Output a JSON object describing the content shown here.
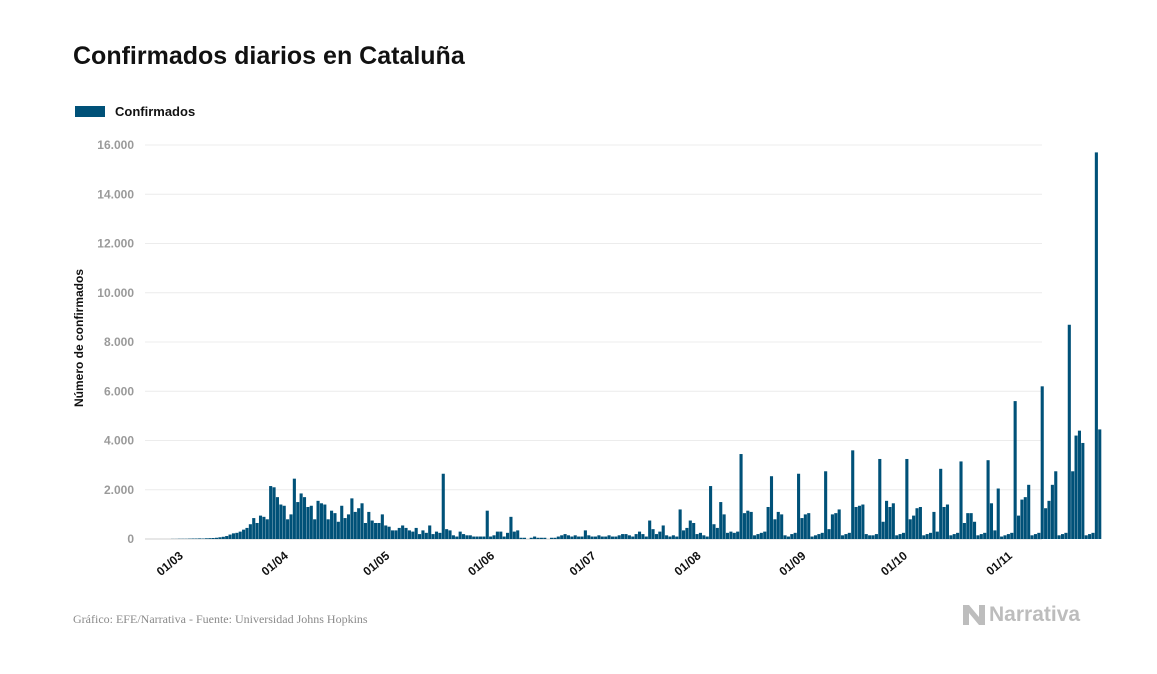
{
  "chart_data": {
    "type": "bar",
    "title": "Confirmados diarios en Cataluña",
    "ylabel": "Número de confirmados",
    "xlabel": "",
    "ylim": [
      0,
      16000
    ],
    "yticks": [
      "0",
      "2.000",
      "4.000",
      "6.000",
      "8.000",
      "10.000",
      "12.000",
      "14.000",
      "16.000"
    ],
    "xtick_labels": [
      "01/03",
      "01/04",
      "01/05",
      "01/06",
      "01/07",
      "01/08",
      "01/09",
      "01/10",
      "01/11"
    ],
    "x_start": "2020-02-25",
    "series": [
      {
        "name": "Confirmados",
        "color": "#005178",
        "values": [
          0,
          0,
          0,
          0,
          5,
          5,
          10,
          10,
          10,
          15,
          20,
          20,
          25,
          20,
          30,
          35,
          40,
          50,
          70,
          90,
          120,
          180,
          230,
          250,
          300,
          380,
          450,
          600,
          850,
          650,
          950,
          900,
          800,
          2150,
          2100,
          1700,
          1400,
          1350,
          800,
          1000,
          2450,
          1500,
          1850,
          1700,
          1300,
          1350,
          800,
          1550,
          1450,
          1400,
          800,
          1150,
          1050,
          700,
          1350,
          850,
          1000,
          1650,
          1100,
          1250,
          1450,
          650,
          1100,
          750,
          650,
          650,
          1000,
          550,
          500,
          350,
          350,
          450,
          550,
          450,
          350,
          300,
          450,
          200,
          350,
          250,
          550,
          200,
          300,
          250,
          2650,
          400,
          350,
          150,
          100,
          300,
          200,
          150,
          150,
          100,
          100,
          100,
          100,
          1150,
          100,
          150,
          300,
          300,
          100,
          250,
          900,
          300,
          350,
          50,
          50,
          0,
          50,
          100,
          50,
          50,
          50,
          0,
          50,
          50,
          100,
          150,
          200,
          150,
          100,
          150,
          100,
          100,
          350,
          150,
          100,
          100,
          150,
          100,
          100,
          150,
          100,
          100,
          150,
          200,
          200,
          150,
          100,
          200,
          300,
          200,
          100,
          750,
          400,
          200,
          300,
          550,
          150,
          100,
          150,
          100,
          1200,
          350,
          450,
          750,
          650,
          200,
          250,
          150,
          100,
          2150,
          600,
          450,
          1500,
          1000,
          250,
          300,
          250,
          300,
          3450,
          1050,
          1150,
          1100,
          150,
          200,
          250,
          300,
          1300,
          2550,
          800,
          1100,
          1000,
          150,
          100,
          200,
          250,
          2650,
          850,
          1000,
          1050,
          100,
          150,
          200,
          250,
          2750,
          400,
          1000,
          1050,
          1200,
          150,
          200,
          250,
          3600,
          1300,
          1350,
          1400,
          200,
          150,
          150,
          200,
          3250,
          700,
          1550,
          1300,
          1450,
          150,
          200,
          250,
          3250,
          800,
          950,
          1250,
          1300,
          150,
          200,
          250,
          1100,
          300,
          2850,
          1300,
          1400,
          150,
          200,
          250,
          3150,
          650,
          1050,
          1050,
          700,
          150,
          200,
          250,
          3200,
          1450,
          350,
          2050,
          100,
          150,
          200,
          250,
          5600,
          950,
          1600,
          1700,
          2200,
          150,
          200,
          250,
          6200,
          1250,
          1550,
          2200,
          2750,
          150,
          200,
          250,
          8700,
          2750,
          4200,
          4400,
          3900,
          150,
          200,
          250,
          15700,
          4450
        ]
      }
    ]
  },
  "footer": {
    "source": "Gráfico: EFE/Narrativa - Fuente: Universidad Johns Hopkins",
    "logo": "Narrativa"
  }
}
